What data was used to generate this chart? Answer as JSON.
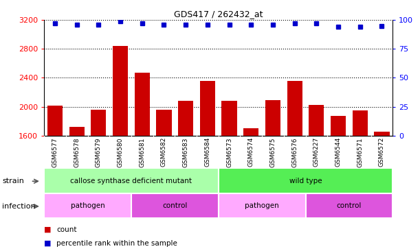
{
  "title": "GDS417 / 262432_at",
  "samples": [
    "GSM6577",
    "GSM6578",
    "GSM6579",
    "GSM6580",
    "GSM6581",
    "GSM6582",
    "GSM6583",
    "GSM6584",
    "GSM6573",
    "GSM6574",
    "GSM6575",
    "GSM6576",
    "GSM6227",
    "GSM6544",
    "GSM6571",
    "GSM6572"
  ],
  "counts": [
    2010,
    1720,
    1960,
    2840,
    2470,
    1960,
    2080,
    2360,
    2080,
    1700,
    2090,
    2360,
    2020,
    1870,
    1950,
    1650
  ],
  "percentiles": [
    97,
    96,
    96,
    99,
    97,
    96,
    96,
    96,
    96,
    96,
    96,
    97,
    97,
    94,
    94,
    95
  ],
  "ylim_left": [
    1600,
    3200
  ],
  "ylim_right": [
    0,
    100
  ],
  "yticks_left": [
    1600,
    2000,
    2400,
    2800,
    3200
  ],
  "yticks_right": [
    0,
    25,
    50,
    75,
    100
  ],
  "bar_color": "#cc0000",
  "dot_color": "#0000cc",
  "strain_groups": [
    {
      "label": "callose synthase deficient mutant",
      "start": 0,
      "end": 8,
      "color": "#aaffaa"
    },
    {
      "label": "wild type",
      "start": 8,
      "end": 16,
      "color": "#55ee55"
    }
  ],
  "infection_groups": [
    {
      "label": "pathogen",
      "start": 0,
      "end": 4,
      "color": "#ffaaff"
    },
    {
      "label": "control",
      "start": 4,
      "end": 8,
      "color": "#dd55dd"
    },
    {
      "label": "pathogen",
      "start": 8,
      "end": 12,
      "color": "#ffaaff"
    },
    {
      "label": "control",
      "start": 12,
      "end": 16,
      "color": "#dd55dd"
    }
  ],
  "legend_count_label": "count",
  "legend_pct_label": "percentile rank within the sample",
  "strain_label": "strain",
  "infection_label": "infection",
  "sample_bg": "#d8d8d8",
  "plot_bg": "#ffffff"
}
